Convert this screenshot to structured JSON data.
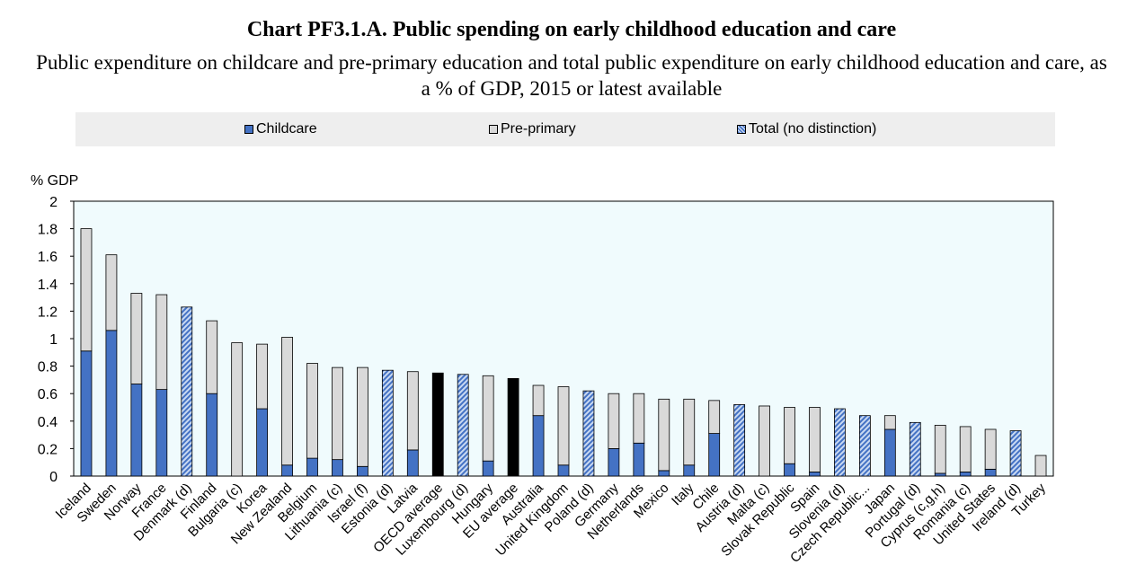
{
  "title": "Chart PF3.1.A. Public spending on early childhood education and care",
  "subtitle": "Public expenditure on childcare and pre-primary education and total public expenditure on early childhood education and care, as a % of GDP, 2015 or latest available",
  "legend": {
    "childcare": "Childcare",
    "preprimary": "Pre-primary",
    "total": "Total (no distinction)"
  },
  "colors": {
    "childcare": "#4472c4",
    "preprimary": "#d9d9d9",
    "total_pattern_dark": "#4472c4",
    "total_pattern_light": "#c9d9f2",
    "average": "#000000",
    "plot_background": "#f0fbfd"
  },
  "chart_data": {
    "type": "bar",
    "stacked": true,
    "ylabel": "% GDP",
    "ylim": [
      0,
      2
    ],
    "yticks": [
      0,
      0.2,
      0.4,
      0.6,
      0.8,
      1,
      1.2,
      1.4,
      1.6,
      1.8,
      2
    ],
    "ytick_labels": [
      "0",
      "0.2",
      "0.4",
      "0.6",
      "0.8",
      "1",
      "1.2",
      "1.4",
      "1.6",
      "1.8",
      "2"
    ],
    "grid": false,
    "legend_position": "top",
    "categories": [
      "Iceland",
      "Sweden",
      "Norway",
      "France",
      "Denmark (d)",
      "Finland",
      "Bulgaria (c)",
      "Korea",
      "New Zealand",
      "Belgium",
      "Lithuania (c)",
      "Israel (f)",
      "Estonia (d)",
      "Latvia",
      "OECD average",
      "Luxembourg (d)",
      "Hungary",
      "EU average",
      "Australia",
      "United Kingdom",
      "Poland (d)",
      "Germany",
      "Netherlands",
      "Mexico",
      "Italy",
      "Chile",
      "Austria (d)",
      "Malta (c)",
      "Slovak Republic",
      "Spain",
      "Slovenia (d)",
      "Czech Republic...",
      "Japan",
      "Portugal (d)",
      "Cyprus (c,g,h)",
      "Romania (c)",
      "United States",
      "Ireland (d)",
      "Turkey"
    ],
    "bar_kind": [
      "split",
      "split",
      "split",
      "split",
      "total",
      "split",
      "split",
      "split",
      "split",
      "split",
      "split",
      "split",
      "total",
      "split",
      "average",
      "total",
      "split",
      "average",
      "split",
      "split",
      "total",
      "split",
      "split",
      "split",
      "split",
      "split",
      "total",
      "split",
      "split",
      "split",
      "total",
      "total",
      "split",
      "total",
      "split",
      "split",
      "split",
      "total",
      "split"
    ],
    "series": [
      {
        "name": "Childcare",
        "values": [
          0.91,
          1.06,
          0.67,
          0.63,
          0,
          0.6,
          0,
          0.49,
          0.08,
          0.13,
          0.12,
          0.07,
          0,
          0.19,
          0,
          0,
          0.11,
          0,
          0.44,
          0.08,
          0,
          0.2,
          0.24,
          0.04,
          0.08,
          0.31,
          0,
          0,
          0.09,
          0.03,
          0,
          0,
          0.34,
          0,
          0.02,
          0.03,
          0.05,
          0,
          0
        ]
      },
      {
        "name": "Pre-primary",
        "values": [
          0.89,
          0.55,
          0.66,
          0.69,
          0,
          0.53,
          0.97,
          0.47,
          0.93,
          0.69,
          0.67,
          0.72,
          0,
          0.57,
          0,
          0,
          0.62,
          0,
          0.22,
          0.57,
          0,
          0.4,
          0.36,
          0.52,
          0.48,
          0.24,
          0,
          0.51,
          0.41,
          0.47,
          0,
          0,
          0.1,
          0,
          0.35,
          0.33,
          0.29,
          0,
          0.15
        ]
      },
      {
        "name": "Total (no distinction)",
        "values": [
          0,
          0,
          0,
          0,
          1.23,
          0,
          0,
          0,
          0,
          0,
          0,
          0,
          0.77,
          0,
          0.75,
          0.74,
          0,
          0.71,
          0,
          0,
          0.62,
          0,
          0,
          0,
          0,
          0,
          0.52,
          0,
          0,
          0,
          0.49,
          0.44,
          0,
          0.39,
          0,
          0,
          0,
          0.33,
          0
        ]
      }
    ]
  }
}
